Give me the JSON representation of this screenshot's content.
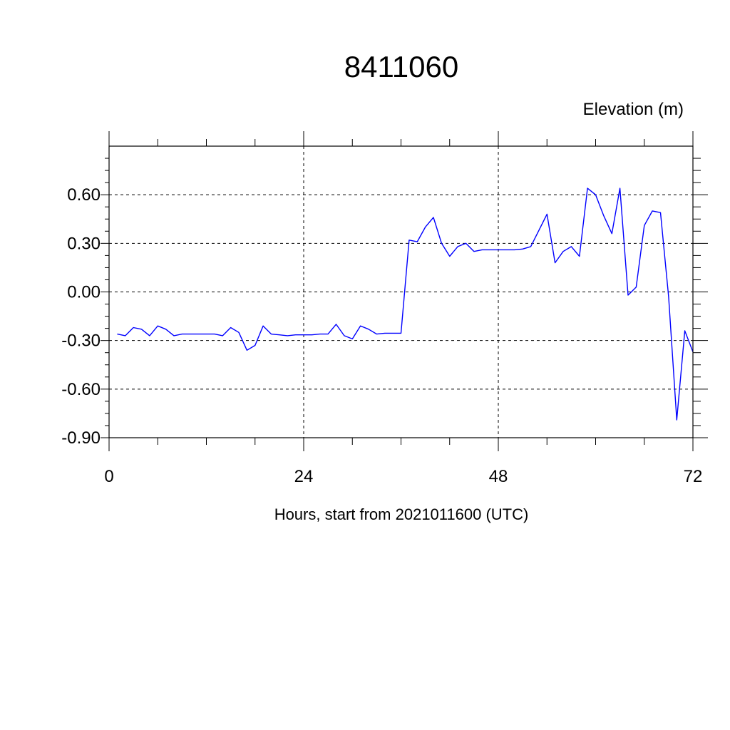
{
  "chart_data": {
    "type": "line",
    "title": "8411060",
    "ylabel": "Elevation (m)",
    "xlabel": "Hours, start from 2021011600 (UTC)",
    "xlim": [
      0,
      72
    ],
    "ylim": [
      -0.9,
      0.9
    ],
    "x_ticks": [
      0,
      24,
      48,
      72
    ],
    "x_tick_labels": [
      "0",
      "24",
      "48",
      "72"
    ],
    "y_ticks": [
      -0.9,
      -0.6,
      -0.3,
      0.0,
      0.3,
      0.6
    ],
    "y_tick_labels": [
      "-0.90",
      "-0.60",
      "-0.30",
      "0.00",
      "0.30",
      "0.60"
    ],
    "grid": true,
    "series": [
      {
        "color": "#0000ff",
        "x": [
          1,
          2,
          3,
          4,
          5,
          6,
          7,
          8,
          9,
          10,
          11,
          12,
          13,
          14,
          15,
          16,
          17,
          18,
          19,
          20,
          21,
          22,
          23,
          24,
          25,
          26,
          27,
          28,
          29,
          30,
          31,
          32,
          33,
          34,
          35,
          36,
          37,
          38,
          39,
          40,
          41,
          42,
          43,
          44,
          45,
          46,
          47,
          48,
          49,
          50,
          51,
          52,
          53,
          54,
          55,
          56,
          57,
          58,
          59,
          60,
          61,
          62,
          63,
          64,
          65,
          66,
          67,
          68,
          69,
          70,
          71,
          72
        ],
        "y": [
          -0.26,
          -0.27,
          -0.22,
          -0.23,
          -0.27,
          -0.21,
          -0.23,
          -0.27,
          -0.26,
          -0.26,
          -0.26,
          -0.26,
          -0.26,
          -0.27,
          -0.22,
          -0.25,
          -0.36,
          -0.33,
          -0.21,
          -0.26,
          -0.265,
          -0.27,
          -0.265,
          -0.265,
          -0.265,
          -0.26,
          -0.26,
          -0.2,
          -0.27,
          -0.29,
          -0.21,
          -0.23,
          -0.26,
          -0.255,
          -0.255,
          -0.255,
          0.32,
          0.31,
          0.4,
          0.46,
          0.3,
          0.22,
          0.28,
          0.3,
          0.25,
          0.26,
          0.26,
          0.26,
          0.26,
          0.26,
          0.265,
          0.28,
          0.38,
          0.48,
          0.18,
          0.25,
          0.28,
          0.22,
          0.64,
          0.6,
          0.47,
          0.36,
          0.64,
          -0.02,
          0.03,
          0.41,
          0.5,
          0.49,
          -0.03,
          -0.79,
          -0.24,
          -0.37
        ]
      }
    ]
  }
}
